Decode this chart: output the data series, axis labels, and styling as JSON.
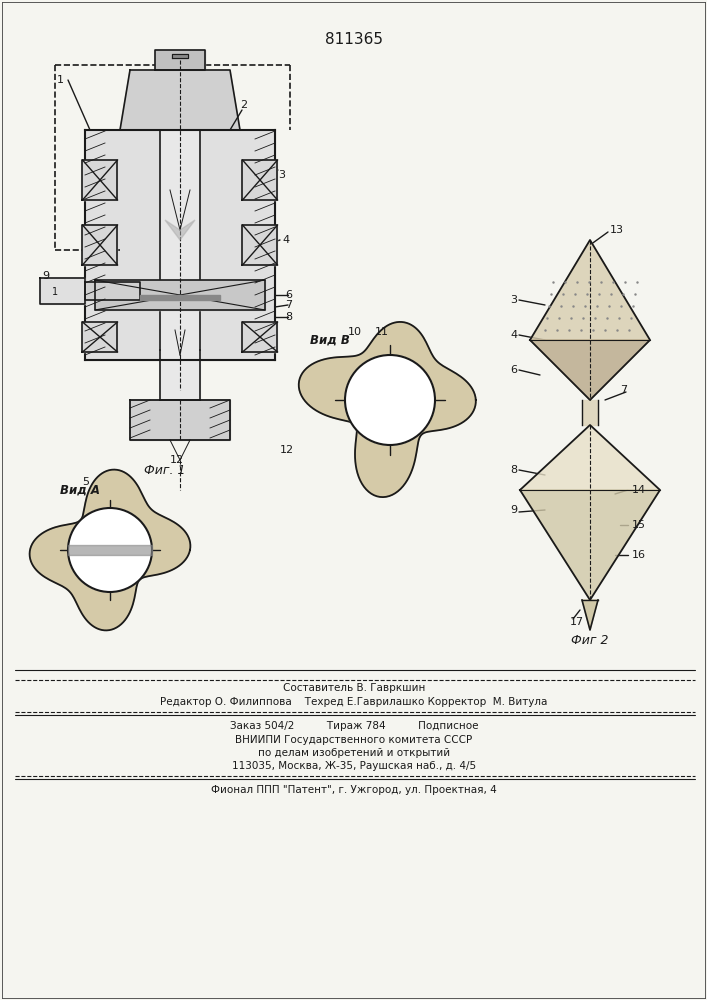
{
  "patent_number": "811365",
  "bg_color": "#f5f5f0",
  "line_color": "#1a1a1a",
  "hatch_color": "#555555",
  "fig1_label": "Фиг. 1",
  "fig2_label": "Фиг 2",
  "vid_a_label": "Вид А",
  "vid_b_label": "Вид В",
  "bottom_text_line1": "Составитель В. Гавркшин",
  "bottom_text_line2": "Редактор О. Филиппова    Техред Е.Гаврилашко Корректор  М. Витула",
  "bottom_text_line3": "Заказ 504/2          Тираж 784          Подписное",
  "bottom_text_line4": "ВНИИПИ Государственного комитета СССР",
  "bottom_text_line5": "по делам изобретений и открытий",
  "bottom_text_line6": "113035, Москва, Ж-35, Раушская наб., д. 4/5",
  "bottom_text_line7": "Фионал ППП \"Патент\", г. Ужгород, ул. Проектная, 4"
}
